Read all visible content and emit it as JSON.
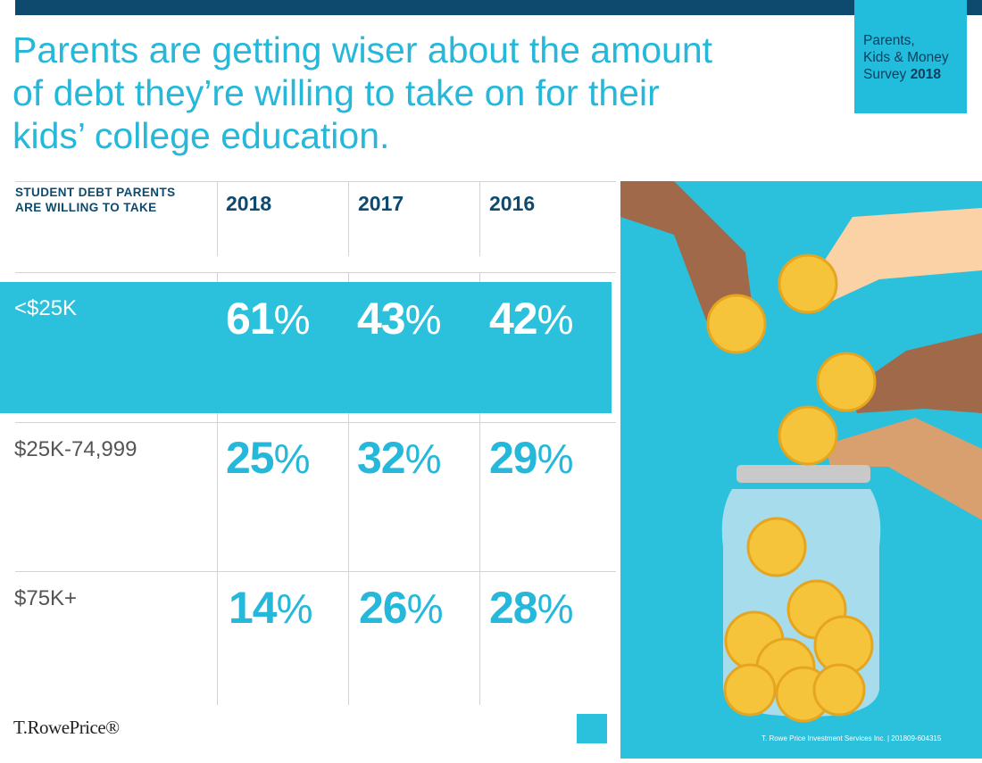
{
  "badge": {
    "line1": "Parents,",
    "line2": "Kids & Money",
    "line3": "Survey",
    "year": "2018"
  },
  "title": "Parents are getting wiser about the amount of debt they’re willing to take on for their kids’ college education.",
  "table": {
    "header_label_1": "STUDENT DEBT PARENTS",
    "header_label_2": "ARE WILLING TO TAKE",
    "years": [
      "2018",
      "2017",
      "2016"
    ],
    "rows": [
      {
        "label": "<$25K",
        "values": [
          "61",
          "43",
          "42"
        ],
        "highlighted": true
      },
      {
        "label": "$25K-74,999",
        "values": [
          "25",
          "32",
          "29"
        ]
      },
      {
        "label": "$75K+",
        "values": [
          "14",
          "26",
          "28"
        ]
      }
    ],
    "unit": "%"
  },
  "footer": {
    "disclaimer": "T. Rowe Price Investment Services Inc. | 201809-604315",
    "logo": "T.RowePrice®"
  },
  "colors": {
    "navy": "#0d4a6e",
    "cyan": "#2bc0dc",
    "title": "#25b8da"
  }
}
